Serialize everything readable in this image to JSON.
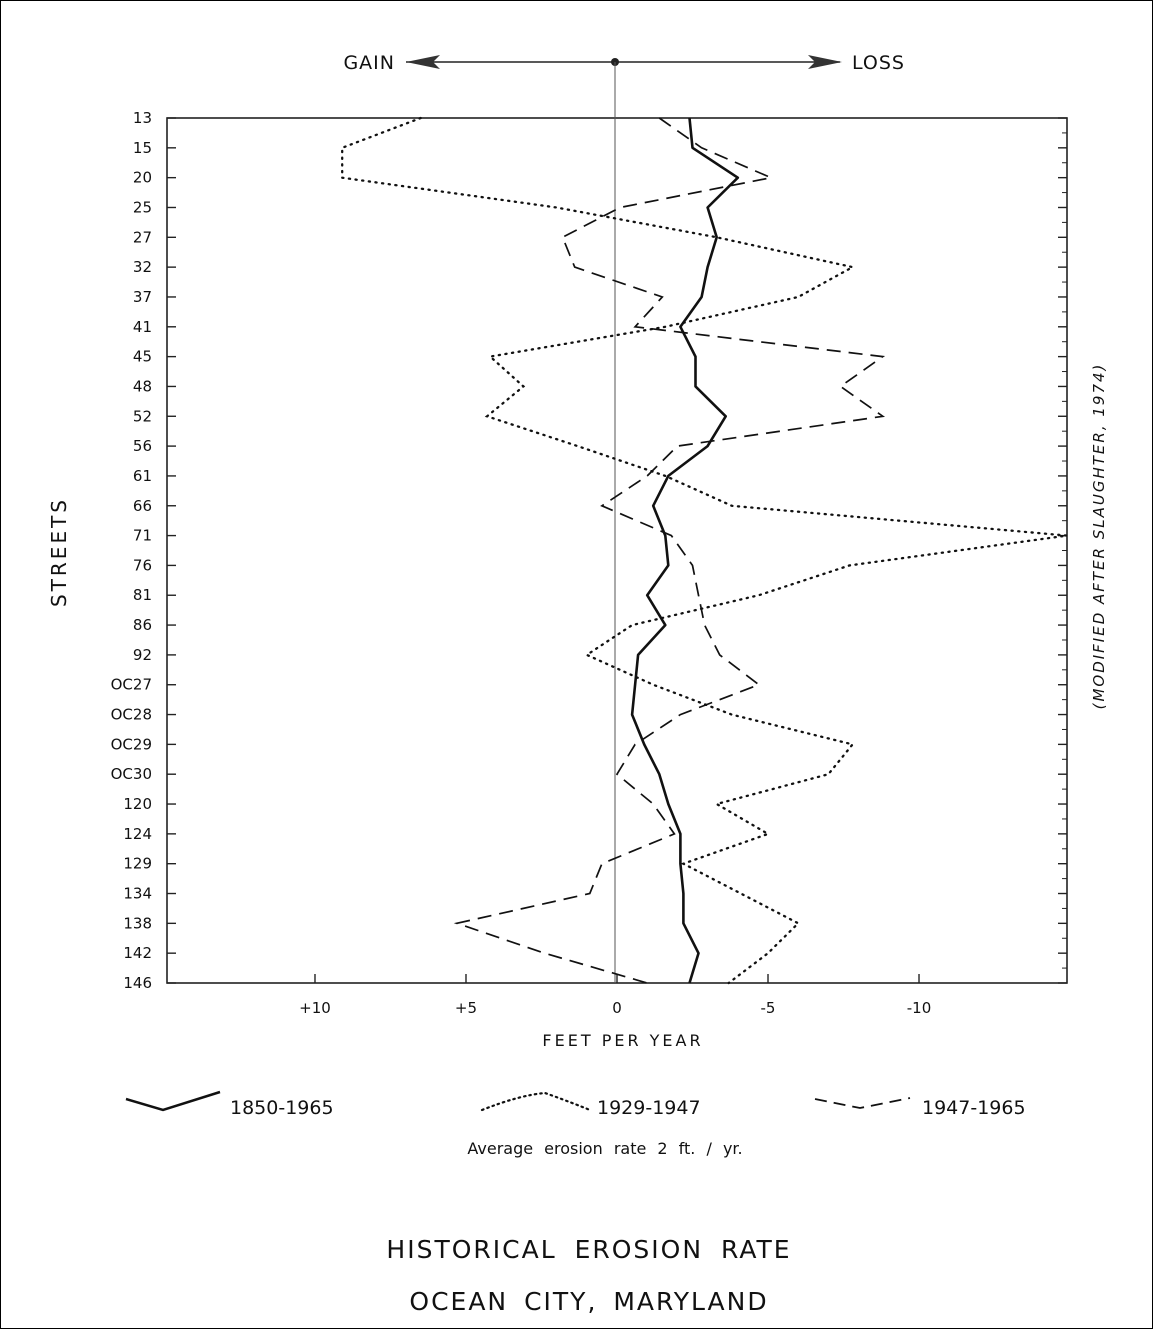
{
  "chart_data": {
    "type": "line",
    "orientation": "vertical",
    "title_lines": [
      "HISTORICAL EROSION RATE",
      "OCEAN CITY, MARYLAND"
    ],
    "xlabel": "FEET PER YEAR",
    "ylabel": "STREETS",
    "direction_left": "GAIN",
    "direction_right": "LOSS",
    "note": "Average erosion rate 2 ft. / yr.",
    "credit": "(MODIFIED AFTER SLAUGHTER, 1974)",
    "x_tick_values": [
      10,
      5,
      0,
      -5,
      -10
    ],
    "x_tick_labels": [
      "+10",
      "+5",
      "0",
      "-5",
      "-10"
    ],
    "xlim": [
      14.9,
      -14.9
    ],
    "x_reversed": true,
    "grid": false,
    "legend_position": "bottom",
    "streets": [
      "13",
      "15",
      "20",
      "25",
      "27",
      "32",
      "37",
      "41",
      "45",
      "48",
      "52",
      "56",
      "61",
      "66",
      "71",
      "76",
      "81",
      "86",
      "92",
      "OC27",
      "OC28",
      "OC29",
      "OC30",
      "120",
      "124",
      "129",
      "134",
      "138",
      "142",
      "146"
    ],
    "series": [
      {
        "name": "1850-1965",
        "style": "solid",
        "values": [
          -2.4,
          -2.5,
          -4.0,
          -3.0,
          -3.3,
          -3.0,
          -2.8,
          -2.1,
          -2.6,
          -2.6,
          -3.6,
          -3.0,
          -1.7,
          -1.2,
          -1.6,
          -1.7,
          -1.0,
          -1.6,
          -0.7,
          -0.6,
          -0.5,
          -0.9,
          -1.4,
          -1.7,
          -2.1,
          -2.1,
          -2.2,
          -2.2,
          -2.7,
          -2.4
        ]
      },
      {
        "name": "1929-1947",
        "style": "dotted",
        "values": [
          6.5,
          9.1,
          9.1,
          2.0,
          -3.3,
          -7.8,
          -6.0,
          -1.6,
          4.2,
          3.1,
          4.3,
          1.3,
          -1.6,
          -3.8,
          -14.9,
          -7.7,
          -4.7,
          -0.5,
          1.0,
          -1.2,
          -3.8,
          -7.8,
          -7.0,
          -3.3,
          -5.0,
          -2.2,
          -4.1,
          -6.0,
          -5.0,
          -3.7
        ]
      },
      {
        "name": "1947-1965",
        "style": "dashed",
        "values": [
          -1.4,
          -2.8,
          -5.1,
          -0.1,
          1.8,
          1.4,
          -1.5,
          -0.6,
          -8.8,
          -7.4,
          -8.8,
          -2.0,
          -1.0,
          0.5,
          -1.8,
          -2.5,
          -2.7,
          -2.9,
          -3.4,
          -4.7,
          -2.1,
          -0.6,
          0.0,
          -1.2,
          -1.9,
          0.5,
          0.9,
          5.3,
          2.4,
          -1.0
        ]
      }
    ]
  }
}
